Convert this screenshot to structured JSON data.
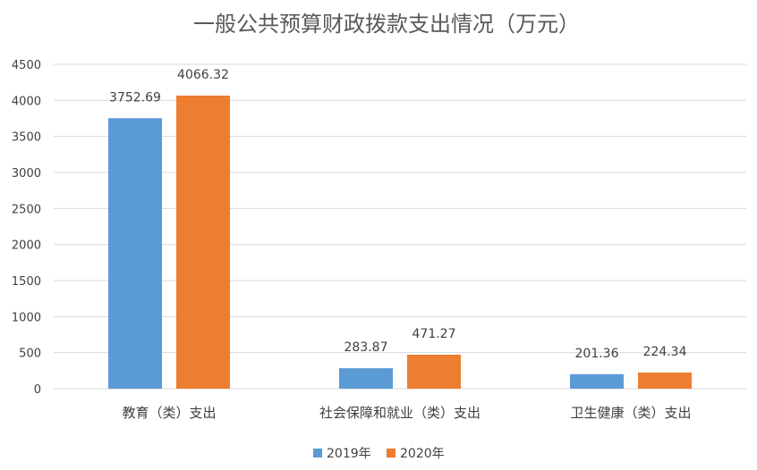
{
  "chart_data": {
    "type": "bar",
    "title": "一般公共预算财政拨款支出情况（万元）",
    "categories": [
      "教育（类）支出",
      "社会保障和就业（类）支出",
      "卫生健康（类）支出"
    ],
    "series": [
      {
        "name": "2019年",
        "values": [
          3752.69,
          283.87,
          201.36
        ],
        "labels": [
          "3752.69",
          "283.87",
          "201.36"
        ],
        "color": "#5b9bd5"
      },
      {
        "name": "2020年",
        "values": [
          4066.32,
          471.27,
          224.34
        ],
        "labels": [
          "4066.32",
          "471.27",
          "224.34"
        ],
        "color": "#ed7d31"
      }
    ],
    "ylim": [
      0,
      4500
    ],
    "yticks": [
      0,
      500,
      1000,
      1500,
      2000,
      2500,
      3000,
      3500,
      4000,
      4500
    ],
    "ytick_labels": [
      "0",
      "500",
      "1000",
      "1500",
      "2000",
      "2500",
      "3000",
      "3500",
      "4000",
      "4500"
    ],
    "grid": true,
    "legend_position": "bottom"
  }
}
